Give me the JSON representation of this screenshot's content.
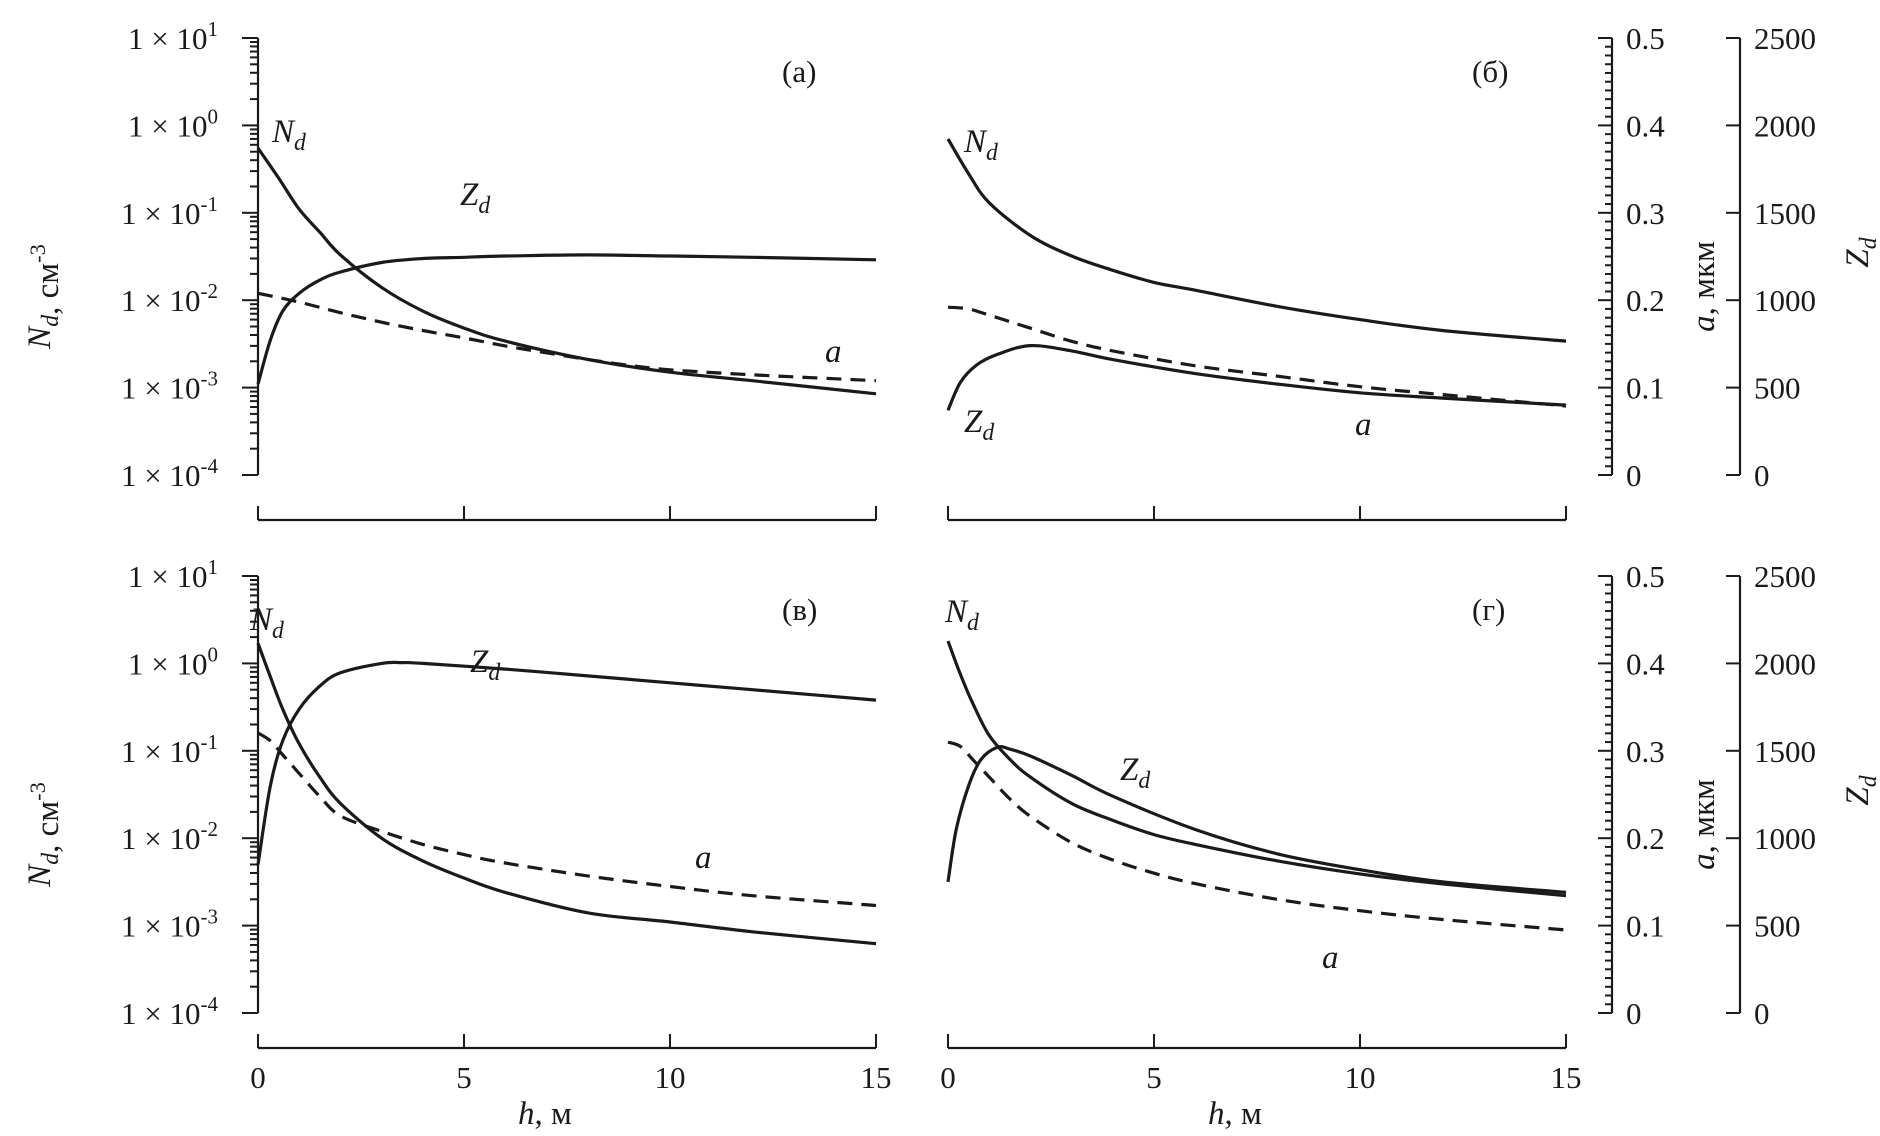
{
  "chart_data": [
    {
      "id": "a",
      "type": "line",
      "panel_label": "(а)",
      "xlabel": "",
      "xlim": [
        0,
        15
      ],
      "x_ticks": [],
      "left_axis": {
        "label": "N_d, см^-3",
        "scale": "log",
        "lim": [
          0.0001,
          10
        ],
        "tick_labels": [
          "1 × 10^1",
          "1 × 10^0",
          "1 × 10^-1",
          "1 × 10^-2",
          "1 × 10^-3",
          "1 × 10^-4"
        ]
      },
      "right_axes": [],
      "series": [
        {
          "name": "N_d",
          "axis": "Nd",
          "style": "solid",
          "x": [
            0,
            0.5,
            1,
            1.5,
            2,
            3,
            4,
            5,
            6,
            8,
            10,
            12,
            15
          ],
          "y": [
            0.55,
            0.25,
            0.11,
            0.06,
            0.033,
            0.014,
            0.0075,
            0.0048,
            0.0034,
            0.0021,
            0.0015,
            0.0012,
            0.00085
          ]
        },
        {
          "name": "Z_d",
          "axis": "Nd",
          "style": "solid",
          "x": [
            0,
            0.3,
            0.6,
            1,
            1.5,
            2,
            3,
            4,
            5,
            6,
            8,
            10,
            12,
            15
          ],
          "y": [
            0.0011,
            0.0035,
            0.0075,
            0.012,
            0.017,
            0.021,
            0.027,
            0.03,
            0.031,
            0.032,
            0.033,
            0.032,
            0.031,
            0.029
          ]
        },
        {
          "name": "a",
          "axis": "Nd",
          "style": "dashed",
          "x": [
            0,
            1,
            2,
            3,
            4,
            5,
            6,
            7,
            8,
            9,
            10,
            12,
            15
          ],
          "y": [
            0.012,
            0.0095,
            0.0072,
            0.0056,
            0.0045,
            0.0037,
            0.003,
            0.0025,
            0.0021,
            0.0018,
            0.0016,
            0.0014,
            0.0012
          ]
        }
      ]
    },
    {
      "id": "b",
      "type": "line",
      "panel_label": "(б)",
      "xlabel": "",
      "xlim": [
        0,
        15
      ],
      "x_ticks": [],
      "left_axis": null,
      "right_axes": [
        {
          "label": "a, мкм",
          "lim": [
            0,
            0.5
          ],
          "tick_labels": [
            "0",
            "0.1",
            "0.2",
            "0.3",
            "0.4",
            "0.5"
          ]
        },
        {
          "label": "Z_d",
          "lim": [
            0,
            2500
          ],
          "tick_labels": [
            "0",
            "500",
            "1000",
            "1500",
            "2000",
            "2500"
          ]
        }
      ],
      "series": [
        {
          "name": "N_d",
          "axis": "Nd",
          "style": "solid",
          "x": [
            0,
            0.5,
            1,
            2,
            3,
            4,
            5,
            6,
            8,
            10,
            12,
            15
          ],
          "y": [
            0.7,
            0.28,
            0.13,
            0.055,
            0.032,
            0.022,
            0.016,
            0.013,
            0.0085,
            0.006,
            0.0045,
            0.0034
          ]
        },
        {
          "name": "Z_d",
          "axis": "Zd",
          "style": "solid",
          "x": [
            0,
            0.3,
            0.7,
            1.2,
            2,
            3,
            4,
            6,
            8,
            10,
            12,
            15
          ],
          "y": [
            370,
            530,
            630,
            690,
            740,
            710,
            660,
            580,
            520,
            470,
            440,
            400
          ]
        },
        {
          "name": "a",
          "axis": "a",
          "style": "dashed",
          "x": [
            0,
            0.5,
            1,
            2,
            3,
            4,
            6,
            8,
            10,
            12,
            15
          ],
          "y": [
            0.192,
            0.19,
            0.183,
            0.168,
            0.153,
            0.142,
            0.125,
            0.113,
            0.101,
            0.092,
            0.079
          ]
        }
      ]
    },
    {
      "id": "v",
      "type": "line",
      "panel_label": "(в)",
      "xlabel": "h, м",
      "xlim": [
        0,
        15
      ],
      "x_ticks": [
        "0",
        "5",
        "10",
        "15"
      ],
      "left_axis": {
        "label": "N_d, см^-3",
        "scale": "log",
        "lim": [
          0.0001,
          10
        ],
        "tick_labels": [
          "1 × 10^1",
          "1 × 10^0",
          "1 × 10^-1",
          "1 × 10^-2",
          "1 × 10^-3",
          "1 × 10^-4"
        ]
      },
      "right_axes": [],
      "series": [
        {
          "name": "N_d",
          "axis": "Nd",
          "style": "solid",
          "x": [
            0,
            0.3,
            0.6,
            1,
            1.5,
            2,
            3,
            4,
            5,
            6,
            8,
            10,
            12,
            15
          ],
          "y": [
            1.7,
            0.7,
            0.3,
            0.12,
            0.05,
            0.025,
            0.01,
            0.0055,
            0.0035,
            0.0024,
            0.0014,
            0.0011,
            0.00085,
            0.00062
          ]
        },
        {
          "name": "Z_d",
          "axis": "Nd",
          "style": "solid",
          "x": [
            0,
            0.3,
            0.6,
            1,
            1.5,
            2,
            3,
            3.5,
            4,
            6,
            8,
            10,
            12,
            15
          ],
          "y": [
            0.005,
            0.04,
            0.13,
            0.3,
            0.55,
            0.78,
            1.0,
            1.02,
            1.0,
            0.86,
            0.72,
            0.6,
            0.5,
            0.38
          ]
        },
        {
          "name": "a",
          "axis": "Nd",
          "style": "dashed",
          "x": [
            0,
            0.3,
            0.6,
            1,
            1.5,
            2,
            3,
            4,
            5,
            6,
            8,
            10,
            12,
            15
          ],
          "y": [
            0.16,
            0.13,
            0.09,
            0.055,
            0.03,
            0.018,
            0.012,
            0.0085,
            0.0065,
            0.0052,
            0.0037,
            0.0028,
            0.0022,
            0.0017
          ]
        }
      ]
    },
    {
      "id": "g",
      "type": "line",
      "panel_label": "(г)",
      "xlabel": "h, м",
      "xlim": [
        0,
        15
      ],
      "x_ticks": [
        "0",
        "5",
        "10",
        "15"
      ],
      "left_axis": null,
      "right_axes": [
        {
          "label": "a, мкм",
          "lim": [
            0,
            0.5
          ],
          "tick_labels": [
            "0",
            "0.1",
            "0.2",
            "0.3",
            "0.4",
            "0.5"
          ]
        },
        {
          "label": "Z_d",
          "lim": [
            0,
            2500
          ],
          "tick_labels": [
            "0",
            "500",
            "1000",
            "1500",
            "2000",
            "2500"
          ]
        }
      ],
      "series": [
        {
          "name": "N_d",
          "axis": "Nd",
          "style": "solid",
          "x": [
            0,
            0.3,
            0.6,
            1,
            1.5,
            2,
            3,
            4,
            5,
            6,
            8,
            10,
            12,
            15
          ],
          "y": [
            1.8,
            0.75,
            0.35,
            0.15,
            0.08,
            0.05,
            0.025,
            0.016,
            0.011,
            0.0085,
            0.0055,
            0.0039,
            0.003,
            0.0022
          ]
        },
        {
          "name": "Z_d",
          "axis": "Zd",
          "style": "solid",
          "x": [
            0,
            0.2,
            0.5,
            0.8,
            1.2,
            1.5,
            2,
            3,
            4,
            6,
            8,
            10,
            12,
            15
          ],
          "y": [
            750,
            1050,
            1300,
            1450,
            1520,
            1510,
            1470,
            1360,
            1240,
            1050,
            910,
            820,
            750,
            690
          ]
        },
        {
          "name": "a",
          "axis": "a",
          "style": "dashed",
          "x": [
            0,
            0.3,
            0.6,
            1,
            1.5,
            2,
            3,
            4,
            5,
            6,
            8,
            10,
            12,
            15
          ],
          "y": [
            0.31,
            0.305,
            0.29,
            0.27,
            0.245,
            0.225,
            0.195,
            0.175,
            0.16,
            0.148,
            0.13,
            0.117,
            0.107,
            0.095
          ]
        }
      ]
    }
  ]
}
